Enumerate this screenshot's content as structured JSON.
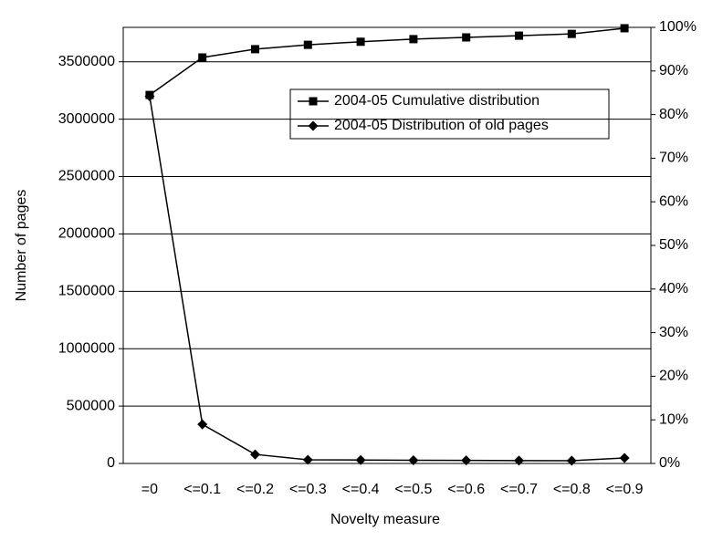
{
  "chart_data": {
    "type": "line",
    "x_label": "Novelty measure",
    "y_label": "Number of pages",
    "categories": [
      "=0",
      "<=0.1",
      "<=0.2",
      "<=0.3",
      "<=0.4",
      "<=0.5",
      "<=0.6",
      "<=0.7",
      "<=0.8",
      "<=0.9"
    ],
    "ylim": [
      0,
      3800000
    ],
    "yticks": [
      0,
      500000,
      1000000,
      1500000,
      2000000,
      2500000,
      3000000,
      3500000
    ],
    "y2lim": [
      0,
      100
    ],
    "y2ticks": [
      {
        "value": 0,
        "label": "0%"
      },
      {
        "value": 10,
        "label": "10%"
      },
      {
        "value": 20,
        "label": "20%"
      },
      {
        "value": 30,
        "label": "30%"
      },
      {
        "value": 40,
        "label": "40%"
      },
      {
        "value": 50,
        "label": "50%"
      },
      {
        "value": 60,
        "label": "60%"
      },
      {
        "value": 70,
        "label": "70%"
      },
      {
        "value": 80,
        "label": "80%"
      },
      {
        "value": 90,
        "label": "90%"
      },
      {
        "value": 100,
        "label": "100%"
      }
    ],
    "grid": true,
    "series": [
      {
        "name": "2004-05 Cumulative distribution",
        "color": "#000000",
        "marker": "square",
        "axis": "y2",
        "values": [
          84.5,
          93.1,
          95.0,
          96.0,
          96.7,
          97.3,
          97.7,
          98.1,
          98.5,
          99.8
        ]
      },
      {
        "name": "2004-05 Distribution of old pages",
        "color": "#000000",
        "marker": "diamond",
        "axis": "y",
        "values": [
          3200000,
          341000,
          79000,
          32000,
          30000,
          28000,
          27000,
          25000,
          24000,
          48000
        ]
      }
    ]
  }
}
